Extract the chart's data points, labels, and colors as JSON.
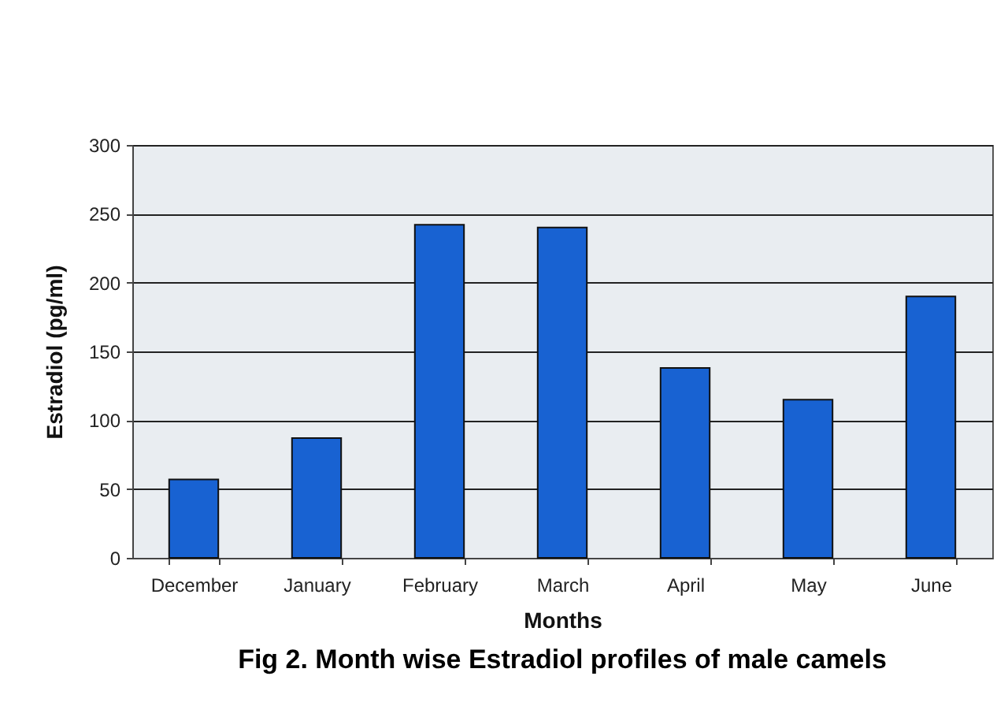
{
  "chart_data": {
    "type": "bar",
    "title": "Fig 2. Month wise Estradiol profiles of male camels",
    "xlabel": "Months",
    "ylabel": "Estradiol (pg/ml)",
    "categories": [
      "December",
      "January",
      "February",
      "March",
      "April",
      "May",
      "June"
    ],
    "values": [
      57,
      87,
      242,
      240,
      138,
      115,
      190
    ],
    "color": "#1862d2",
    "ylim": [
      0,
      300
    ],
    "yticks": [
      0,
      50,
      100,
      150,
      200,
      250,
      300
    ],
    "grid": "y"
  }
}
